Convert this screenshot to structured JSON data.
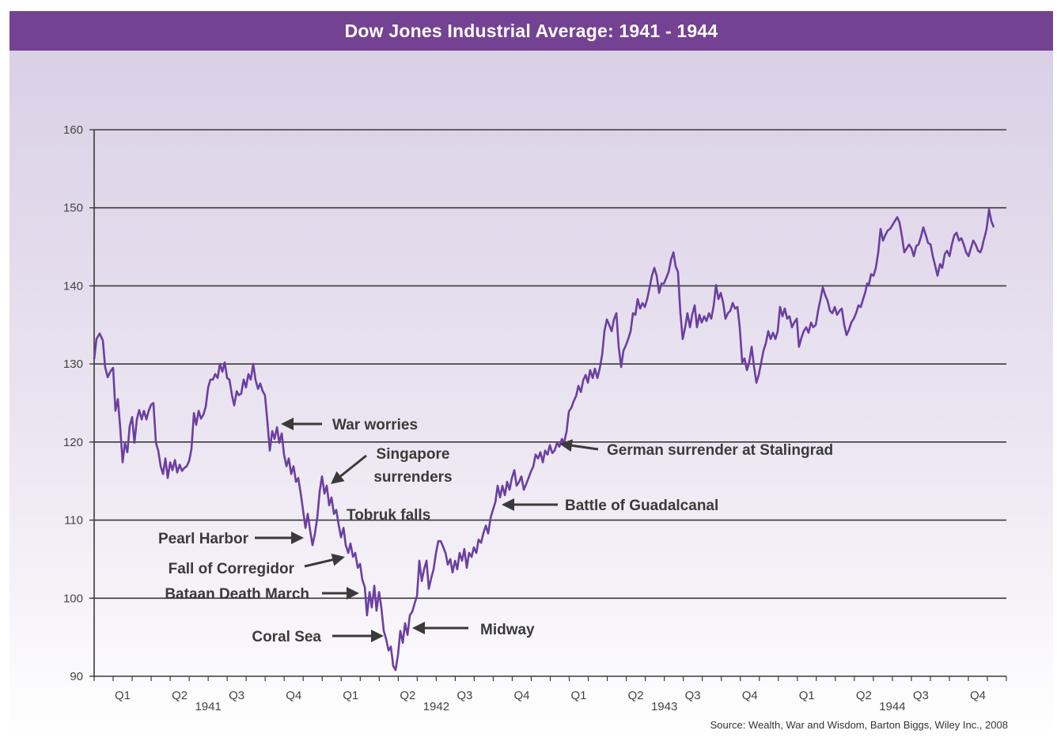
{
  "header": {
    "title": "Dow Jones Industrial Average: 1941 - 1944"
  },
  "colors": {
    "header_bg": "#744293",
    "line": "#6b3fa0",
    "grid": "#3a3a3a",
    "annotation": "#3a3a3a"
  },
  "chart_data": {
    "type": "line",
    "title": "Dow Jones Industrial Average: 1941 - 1944",
    "xlabel": "",
    "ylabel": "",
    "ylim": [
      90,
      160
    ],
    "xlim_months": [
      0,
      48
    ],
    "yticks": [
      90,
      100,
      110,
      120,
      130,
      140,
      150,
      160
    ],
    "grid": true,
    "quarter_labels": [
      "Q1",
      "Q2",
      "Q3",
      "Q4",
      "Q1",
      "Q2",
      "Q3",
      "Q4",
      "Q1",
      "Q2",
      "Q3",
      "Q4",
      "Q1",
      "Q2",
      "Q3",
      "Q4"
    ],
    "year_labels": [
      "1941",
      "1942",
      "1943",
      "1944"
    ],
    "source": "Source: Wealth, War and Wisdom, Barton Biggs, Wiley Inc., 2008",
    "series": [
      {
        "name": "DJIA",
        "x_months": [
          0,
          0.12,
          0.29,
          0.46,
          0.58,
          0.71,
          0.87,
          1.0,
          1.12,
          1.25,
          1.37,
          1.5,
          1.62,
          1.75,
          1.87,
          2.0,
          2.12,
          2.25,
          2.37,
          2.5,
          2.62,
          2.75,
          2.87,
          3.0,
          3.12,
          3.25,
          3.37,
          3.5,
          3.62,
          3.75,
          3.87,
          4.0,
          4.12,
          4.25,
          4.37,
          4.5,
          4.62,
          4.75,
          4.87,
          5.0,
          5.12,
          5.25,
          5.37,
          5.5,
          5.62,
          5.75,
          5.87,
          6.0,
          6.12,
          6.25,
          6.37,
          6.5,
          6.62,
          6.75,
          6.87,
          7.0,
          7.12,
          7.25,
          7.37,
          7.5,
          7.62,
          7.74,
          7.87,
          7.99,
          8.12,
          8.24,
          8.37,
          8.49,
          8.62,
          8.74,
          8.87,
          8.99,
          9.12,
          9.24,
          9.37,
          9.49,
          9.62,
          9.74,
          9.87,
          9.99,
          10.12,
          10.24,
          10.37,
          10.49,
          10.62,
          10.74,
          10.87,
          10.99,
          11.12,
          11.24,
          11.37,
          11.49,
          11.62,
          11.74,
          11.87,
          11.99,
          12.12,
          12.24,
          12.37,
          12.49,
          12.62,
          12.74,
          12.87,
          12.99,
          13.12,
          13.24,
          13.37,
          13.49,
          13.62,
          13.74,
          13.87,
          13.99,
          14.11,
          14.24,
          14.36,
          14.49,
          14.61,
          14.74,
          14.86,
          14.99,
          15.11,
          15.24,
          15.36,
          15.49,
          15.61,
          15.74,
          15.86,
          15.99,
          16.11,
          16.24,
          16.36,
          16.49,
          16.61,
          16.74,
          16.86,
          16.99,
          17.11,
          17.24,
          17.36,
          17.49,
          17.61,
          17.74,
          17.86,
          17.99,
          18.11,
          18.24,
          18.36,
          18.49,
          18.61,
          18.74,
          18.86,
          18.99,
          19.11,
          19.23,
          19.36,
          19.48,
          19.61,
          19.73,
          19.86,
          19.98,
          20.11,
          20.23,
          20.36,
          20.48,
          20.61,
          20.73,
          20.86,
          20.98,
          21.11,
          21.23,
          21.36,
          21.48,
          21.61,
          21.73,
          21.86,
          21.98,
          22.11,
          22.23,
          22.36,
          22.48,
          22.61,
          22.73,
          22.86,
          22.98,
          23.11,
          23.23,
          23.36,
          23.48,
          23.61,
          23.73,
          23.86,
          23.98,
          24.11,
          24.23,
          24.36,
          24.48,
          24.61,
          24.73,
          24.86,
          24.98,
          25.11,
          25.23,
          25.36,
          25.48,
          25.61,
          25.73,
          25.86,
          25.98,
          26.1,
          26.23,
          26.35,
          26.48,
          26.6,
          26.73,
          26.85,
          26.98,
          27.1,
          27.23,
          27.35,
          27.48,
          27.6,
          27.73,
          27.85,
          27.98,
          28.1,
          28.23,
          28.35,
          28.48,
          28.6,
          28.73,
          28.85,
          28.98,
          29.1,
          29.23,
          29.35,
          29.48,
          29.6,
          29.73,
          29.85,
          29.98,
          30.1,
          30.23,
          30.35,
          30.48,
          30.6,
          30.72,
          30.85,
          30.97,
          31.1,
          31.22,
          31.35,
          31.47,
          31.6,
          31.72,
          31.85,
          31.97,
          32.1,
          32.22,
          32.35,
          32.47,
          32.6,
          32.72,
          32.85,
          32.97,
          33.1,
          33.22,
          33.35,
          33.47,
          33.6,
          33.72,
          33.85,
          33.97,
          34.1,
          34.22,
          34.35,
          34.47,
          34.6,
          34.72,
          34.85,
          34.97,
          35.1,
          35.22,
          35.35,
          35.47,
          35.6,
          35.72,
          35.85,
          35.97,
          36.09,
          36.22,
          36.34,
          36.47,
          36.59,
          36.72,
          36.84,
          36.97,
          37.09,
          37.22,
          37.34,
          37.47,
          37.59,
          37.72,
          37.84,
          37.97,
          38.09,
          38.22,
          38.34,
          38.47,
          38.59,
          38.72,
          38.84,
          38.97,
          39.09,
          39.22,
          39.34,
          39.47,
          39.59,
          39.72,
          39.84,
          39.97,
          40.09,
          40.22,
          40.34,
          40.46,
          40.59,
          40.67,
          40.76,
          40.88,
          41.01,
          41.13,
          41.26,
          41.38,
          41.51,
          41.63,
          41.76,
          41.88,
          42.01,
          42.13,
          42.26,
          42.38,
          42.51,
          42.63,
          42.76,
          42.88,
          43.01,
          43.13,
          43.26,
          43.38,
          43.51,
          43.63,
          43.76,
          43.88,
          44.01,
          44.13,
          44.26,
          44.38,
          44.51,
          44.63,
          44.76,
          44.88,
          45.01,
          45.13,
          45.26,
          45.38,
          45.51,
          45.63,
          45.76,
          45.88,
          46.01,
          46.13,
          46.26,
          46.38,
          46.51,
          46.63,
          46.71,
          46.8,
          46.88,
          46.96,
          47.09,
          47.21,
          47.34
        ],
        "values": [
          130.6,
          133.2,
          133.9,
          133.0,
          129.6,
          128.3,
          129.1,
          129.5,
          124.0,
          125.5,
          121.9,
          117.4,
          119.9,
          118.7,
          122.0,
          123.2,
          119.9,
          122.9,
          124.1,
          122.9,
          124.0,
          122.9,
          124.0,
          124.8,
          125.0,
          119.9,
          118.9,
          116.9,
          115.9,
          117.9,
          115.4,
          117.4,
          116.4,
          117.7,
          116.1,
          117.1,
          116.3,
          116.7,
          116.9,
          117.6,
          119.1,
          123.7,
          122.2,
          124.0,
          123.0,
          123.5,
          124.5,
          127.0,
          128.0,
          128.0,
          128.7,
          128.2,
          130.0,
          129.0,
          130.2,
          128.2,
          128.0,
          126.0,
          124.7,
          126.5,
          126.0,
          126.2,
          128.0,
          127.0,
          128.7,
          128.0,
          130.0,
          128.0,
          126.8,
          127.5,
          126.5,
          126.0,
          122.5,
          118.9,
          121.4,
          120.4,
          121.9,
          119.9,
          121.1,
          118.4,
          116.9,
          117.9,
          115.9,
          116.9,
          114.9,
          115.4,
          113.4,
          111.3,
          109.0,
          110.8,
          108.6,
          106.8,
          108.3,
          110.3,
          113.7,
          115.6,
          113.4,
          114.4,
          111.9,
          112.9,
          110.8,
          111.3,
          109.4,
          107.8,
          109.0,
          106.8,
          105.8,
          107.0,
          105.3,
          105.8,
          103.9,
          104.4,
          102.4,
          101.4,
          97.8,
          100.8,
          98.8,
          101.6,
          98.4,
          100.8,
          98.8,
          95.8,
          94.8,
          93.3,
          93.8,
          91.3,
          90.8,
          92.8,
          95.8,
          94.3,
          96.8,
          95.3,
          97.8,
          98.3,
          99.3,
          100.3,
          104.8,
          102.2,
          103.7,
          104.8,
          101.2,
          102.6,
          103.7,
          105.8,
          107.3,
          107.3,
          106.6,
          105.8,
          104.3,
          105.0,
          103.3,
          104.8,
          103.7,
          105.8,
          104.8,
          106.3,
          103.9,
          105.8,
          105.3,
          106.5,
          105.8,
          107.5,
          107.1,
          108.3,
          109.3,
          108.3,
          110.3,
          111.3,
          112.3,
          114.4,
          112.9,
          114.4,
          113.2,
          114.9,
          113.9,
          115.4,
          116.4,
          114.4,
          114.9,
          115.6,
          113.9,
          114.6,
          115.4,
          116.2,
          116.9,
          118.4,
          117.9,
          118.7,
          117.4,
          118.9,
          118.4,
          119.6,
          118.6,
          118.9,
          119.9,
          119.4,
          120.4,
          119.9,
          121.4,
          123.9,
          124.4,
          125.2,
          125.9,
          127.2,
          126.4,
          127.9,
          128.6,
          127.6,
          129.2,
          128.2,
          129.4,
          128.2,
          129.4,
          131.2,
          134.2,
          135.7,
          135.0,
          134.2,
          135.7,
          136.5,
          132.2,
          129.6,
          131.7,
          132.4,
          133.2,
          134.2,
          136.5,
          136.3,
          138.3,
          137.1,
          137.8,
          137.3,
          138.3,
          139.8,
          141.3,
          142.3,
          141.3,
          139.1,
          140.3,
          140.3,
          141.0,
          141.8,
          143.3,
          144.3,
          142.5,
          141.8,
          136.5,
          133.2,
          134.7,
          136.5,
          134.7,
          136.3,
          137.5,
          134.7,
          136.3,
          135.3,
          136.1,
          135.5,
          136.5,
          135.8,
          137.5,
          140.1,
          138.3,
          139.1,
          137.8,
          135.8,
          136.5,
          136.8,
          137.8,
          137.1,
          137.3,
          134.7,
          130.2,
          130.7,
          129.2,
          130.2,
          132.2,
          129.7,
          127.6,
          128.6,
          130.2,
          131.7,
          132.7,
          134.2,
          133.2,
          134.0,
          133.2,
          134.2,
          137.3,
          136.1,
          137.1,
          135.8,
          136.1,
          134.7,
          135.3,
          135.8,
          132.2,
          133.4,
          134.2,
          134.7,
          134.0,
          135.3,
          134.7,
          135.0,
          136.8,
          138.3,
          139.8,
          138.8,
          138.1,
          136.8,
          136.5,
          137.3,
          136.3,
          136.8,
          137.1,
          135.0,
          133.7,
          134.4,
          135.3,
          135.8,
          136.5,
          137.5,
          137.3,
          138.3,
          139.3,
          140.3,
          140.1,
          141.5,
          141.3,
          142.3,
          144.3,
          147.3,
          145.8,
          146.5,
          147.1,
          147.3,
          147.8,
          148.3,
          148.8,
          148.1,
          146.3,
          144.3,
          144.8,
          145.3,
          144.8,
          143.8,
          145.1,
          145.3,
          146.3,
          147.5,
          146.5,
          145.5,
          145.3,
          143.8,
          142.5,
          141.3,
          142.8,
          142.3,
          144.1,
          144.5,
          143.8,
          145.3,
          146.5,
          146.8,
          145.8,
          146.1,
          145.3,
          144.3,
          143.8,
          144.8,
          145.8,
          145.3,
          144.5,
          144.3,
          144.8,
          145.8,
          146.5,
          147.3,
          149.8,
          148.3,
          147.5,
          149.3,
          147.8,
          147.5,
          146.5
        ]
      }
    ],
    "annotations": [
      {
        "text": "War worries",
        "month": 9.5,
        "value": 122.3
      },
      {
        "text": "Singapore surrenders",
        "month": 12.5,
        "value": 114.5
      },
      {
        "text": "Tobruk falls",
        "month": 13.3,
        "value": 110.5
      },
      {
        "text": "Pearl Harbor",
        "month": 11.0,
        "value": 107.8
      },
      {
        "text": "Fall of Corregidor",
        "month": 13.0,
        "value": 105.2
      },
      {
        "text": "Bataan Death March",
        "month": 13.8,
        "value": 100.6
      },
      {
        "text": "Coral Sea",
        "month": 15.2,
        "value": 95.2
      },
      {
        "text": "Midway",
        "month": 16.8,
        "value": 96.2
      },
      {
        "text": "Battle of Guadalcanal",
        "month": 21.7,
        "value": 111.9
      },
      {
        "text": "German surrender at Stalingrad",
        "month": 24.5,
        "value": 119.4
      }
    ]
  }
}
